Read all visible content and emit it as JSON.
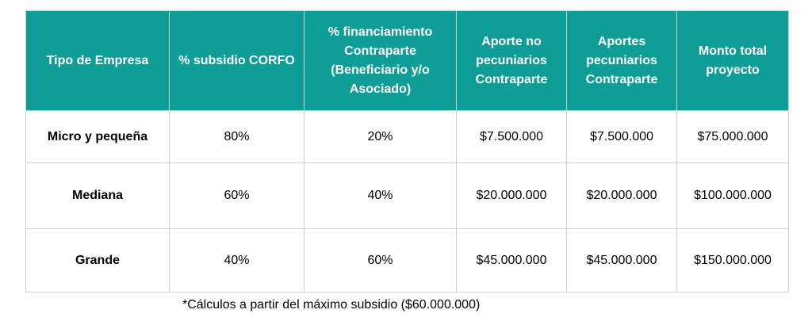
{
  "table": {
    "headers": [
      "Tipo de Empresa",
      "% subsidio CORFO",
      "% financiamiento Contraparte (Beneficiario y/o Asociado)",
      "Aporte no pecuniarios Contraparte",
      "Aportes pecuniarios Contraparte",
      "Monto total proyecto"
    ],
    "header_colors": {
      "background": "#0e9e97",
      "text": "#ffffff"
    },
    "rows": [
      {
        "tipo": "Micro y pequeña",
        "subsidio": "80%",
        "financiamiento": "20%",
        "no_pecuniarios": "$7.500.000",
        "pecuniarios": "$7.500.000",
        "monto_total": "$75.000.000"
      },
      {
        "tipo": "Mediana",
        "subsidio": "60%",
        "financiamiento": "40%",
        "no_pecuniarios": "$20.000.000",
        "pecuniarios": "$20.000.000",
        "monto_total": "$100.000.000"
      },
      {
        "tipo": "Grande",
        "subsidio": "40%",
        "financiamiento": "60%",
        "no_pecuniarios": "$45.000.000",
        "pecuniarios": "$45.000.000",
        "monto_total": "$150.000.000"
      }
    ]
  },
  "footnote": "*Cálculos a partir del máximo subsidio ($60.000.000)"
}
